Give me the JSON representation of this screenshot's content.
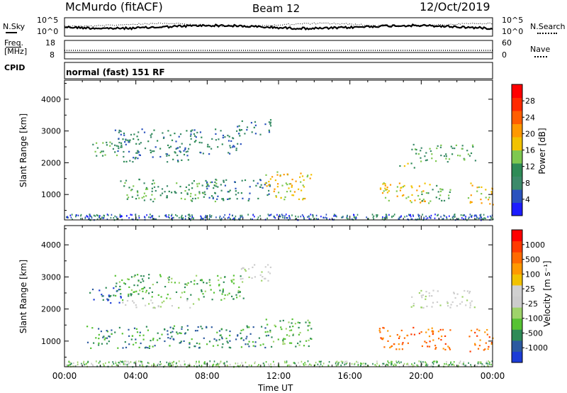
{
  "header": {
    "site": "McMurdo (fitACF)",
    "beam": "Beam 12",
    "date": "12/Oct/2019"
  },
  "noise_panel": {
    "left_label": "N.Sky",
    "right_label": "N.Search",
    "left_ticks": [
      "10^5",
      "10^0"
    ],
    "right_ticks": [
      "10^5",
      "10^0"
    ]
  },
  "freq_panel": {
    "left_label_line1": "Freq.",
    "left_label_line2": "[MHz]",
    "left_ticks": [
      "18",
      "8"
    ],
    "right_label": "Nave",
    "right_ticks": [
      "60",
      "0"
    ]
  },
  "cpid_panel": {
    "label": "CPID",
    "text": "normal (fast) 151 RF"
  },
  "chart_data": [
    {
      "type": "heatmap",
      "name": "power",
      "ylabel": "Slant Range [km]",
      "yticks": [
        "1000",
        "2000",
        "3000",
        "4000"
      ],
      "ylim": [
        200,
        4600
      ],
      "xlim_hours": [
        0,
        24
      ],
      "colorbar_label": "Power [dB]",
      "colorbar_ticks": [
        "4",
        "8",
        "12",
        "16",
        "20",
        "24",
        "28"
      ],
      "colorbar_colors": [
        "#1c1cff",
        "#2a52be",
        "#3c8a6a",
        "#2e8b57",
        "#7ec850",
        "#f2c200",
        "#ff9900",
        "#ff5e00",
        "#ff2a00",
        "#ff0000"
      ],
      "scatter_regions": [
        {
          "t0": 1.3,
          "t1": 3.2,
          "r0": 2200,
          "r1": 2700,
          "level": 3
        },
        {
          "t0": 2.8,
          "t1": 10.0,
          "r0": 2300,
          "r1": 3100,
          "level": 2
        },
        {
          "t0": 9.6,
          "t1": 11.6,
          "r0": 2900,
          "r1": 3400,
          "level": 2
        },
        {
          "t0": 3.2,
          "t1": 7.2,
          "r0": 2050,
          "r1": 2300,
          "level": 2
        },
        {
          "t0": 3.1,
          "t1": 8.5,
          "r0": 800,
          "r1": 1500,
          "level": 3
        },
        {
          "t0": 7.8,
          "t1": 11.6,
          "r0": 800,
          "r1": 1500,
          "level": 2
        },
        {
          "t0": 11.2,
          "t1": 13.8,
          "r0": 850,
          "r1": 1750,
          "level": 5
        },
        {
          "t0": 17.6,
          "t1": 20.5,
          "r0": 750,
          "r1": 1450,
          "level": 5
        },
        {
          "t0": 20.0,
          "t1": 21.6,
          "r0": 800,
          "r1": 1300,
          "level": 3
        },
        {
          "t0": 19.4,
          "t1": 23.0,
          "r0": 2050,
          "r1": 2600,
          "level": 3
        },
        {
          "t0": 18.6,
          "t1": 19.6,
          "r0": 1850,
          "r1": 2050,
          "level": 4
        },
        {
          "t0": 22.6,
          "t1": 24.0,
          "r0": 700,
          "r1": 1400,
          "level": 5
        }
      ]
    },
    {
      "type": "heatmap",
      "name": "velocity",
      "ylabel": "Slant Range [km]",
      "yticks": [
        "1000",
        "2000",
        "3000",
        "4000"
      ],
      "ylim": [
        200,
        4600
      ],
      "xlim_hours": [
        0,
        24
      ],
      "xticks": [
        "00:00",
        "04:00",
        "08:00",
        "12:00",
        "16:00",
        "20:00",
        "00:00"
      ],
      "xlabel": "Time UT",
      "colorbar_label": "Velocity [m s⁻¹]",
      "colorbar_ticks": [
        "1000",
        "500",
        "100",
        "25",
        "-25",
        "-100",
        "-500",
        "-1000"
      ],
      "colorbar_colors": [
        "#1c3cd6",
        "#2c5aa0",
        "#2e8b57",
        "#56c233",
        "#9ed36a",
        "#cccccc",
        "#d0d0d0",
        "#f2c200",
        "#ff9900",
        "#ff6a00",
        "#ff3a00",
        "#ff0000"
      ],
      "scatter_regions": [
        {
          "t0": 1.3,
          "t1": 3.2,
          "r0": 2200,
          "r1": 2700,
          "level": 1
        },
        {
          "t0": 2.8,
          "t1": 10.0,
          "r0": 2300,
          "r1": 3100,
          "level": 3
        },
        {
          "t0": 9.6,
          "t1": 11.6,
          "r0": 2900,
          "r1": 3400,
          "level": 5
        },
        {
          "t0": 3.2,
          "t1": 7.2,
          "r0": 2050,
          "r1": 2300,
          "level": 5
        },
        {
          "t0": 1.2,
          "t1": 11.6,
          "r0": 800,
          "r1": 1500,
          "level": 2
        },
        {
          "t0": 11.2,
          "t1": 13.8,
          "r0": 850,
          "r1": 1750,
          "level": 3
        },
        {
          "t0": 17.6,
          "t1": 21.6,
          "r0": 750,
          "r1": 1450,
          "level": 9
        },
        {
          "t0": 19.4,
          "t1": 23.0,
          "r0": 2050,
          "r1": 2600,
          "level": 5
        },
        {
          "t0": 22.6,
          "t1": 24.0,
          "r0": 700,
          "r1": 1400,
          "level": 9
        }
      ]
    }
  ]
}
